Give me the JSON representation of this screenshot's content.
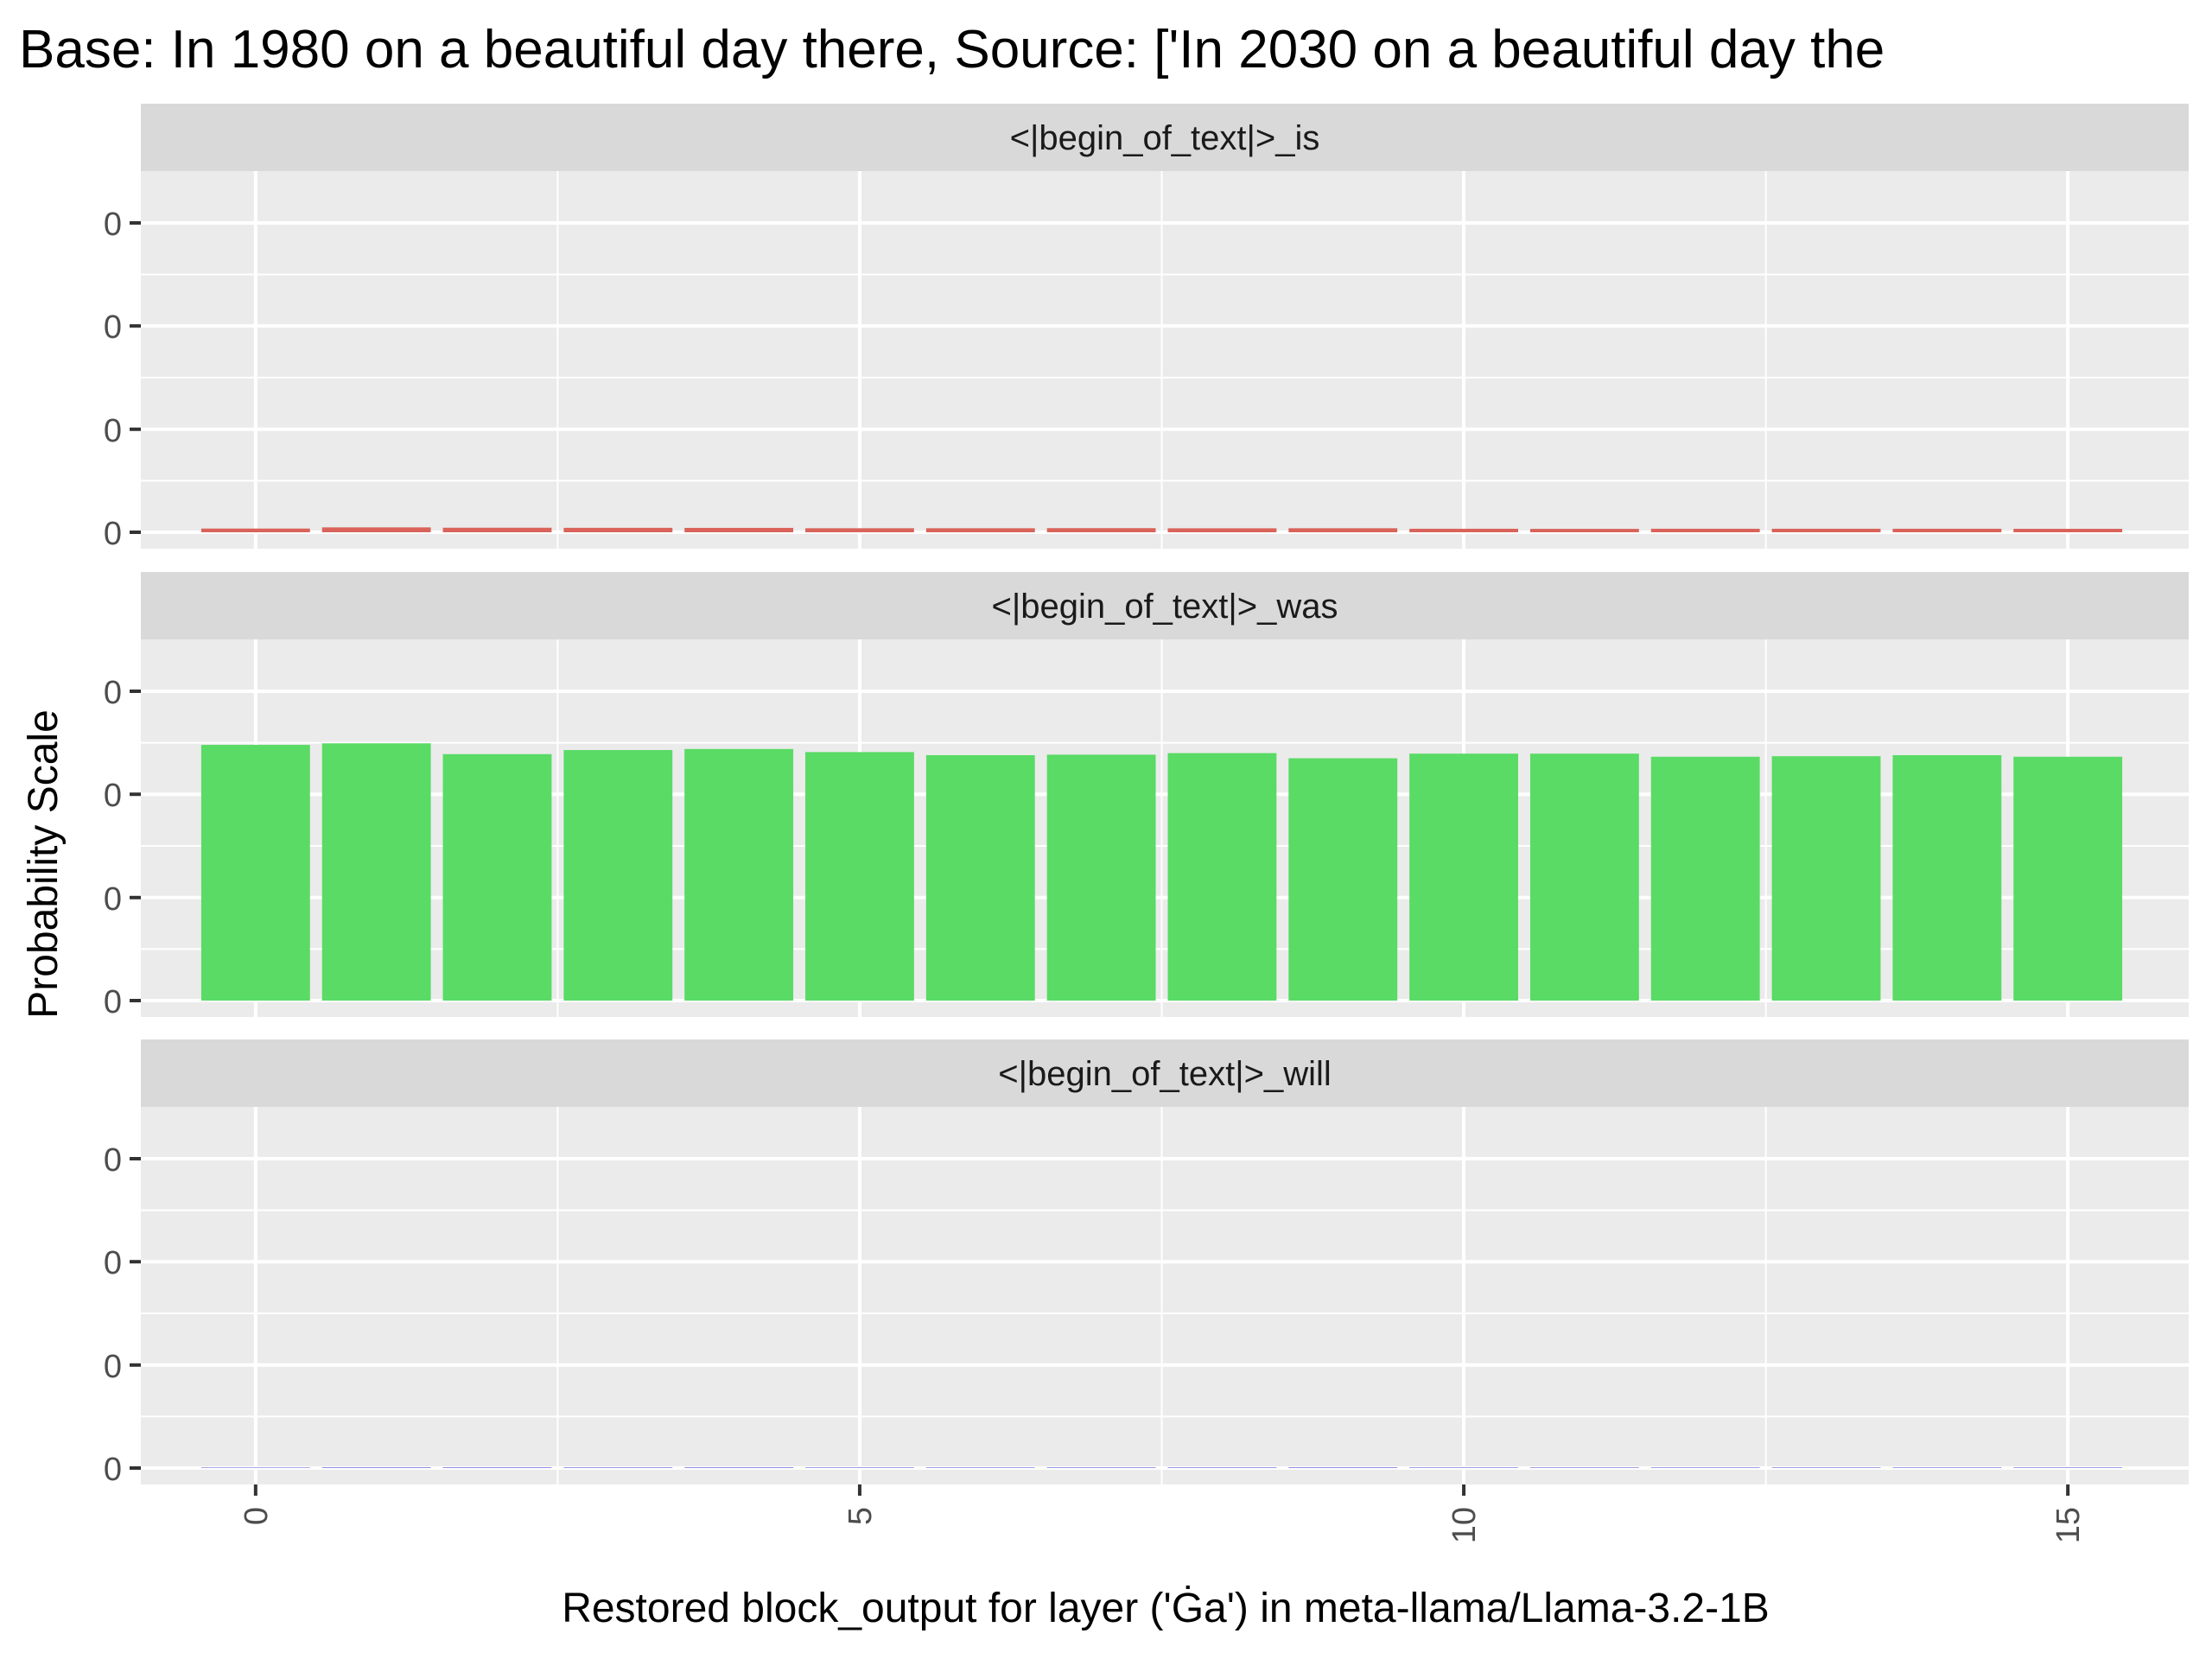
{
  "chart_data": {
    "type": "bar",
    "title": "Base: In 1980 on a beautiful day there, Source: ['In 2030 on a beautiful day the",
    "xlabel": "Restored block_output for layer ('Ġa') in meta-llama/Llama-3.2-1B",
    "ylabel": "Probability Scale",
    "x": [
      0,
      1,
      2,
      3,
      4,
      5,
      6,
      7,
      8,
      9,
      10,
      11,
      12,
      13,
      14,
      15
    ],
    "x_ticks": [
      "0",
      "5",
      "10",
      "15"
    ],
    "y_tick_labels": [
      "0",
      "0",
      "0",
      "0"
    ],
    "ylim": [
      0,
      0.6
    ],
    "grid": true,
    "facets": [
      {
        "strip": "<|begin_of_text|>_is",
        "color": "#D9635A",
        "values": [
          0.0072,
          0.0095,
          0.0088,
          0.0086,
          0.0085,
          0.0078,
          0.0078,
          0.008,
          0.0077,
          0.0078,
          0.0068,
          0.0066,
          0.0068,
          0.0068,
          0.0068,
          0.0067
        ]
      },
      {
        "strip": "<|begin_of_text|>_was",
        "color": "#59DB65",
        "values": [
          0.496,
          0.499,
          0.478,
          0.486,
          0.488,
          0.482,
          0.476,
          0.477,
          0.48,
          0.47,
          0.479,
          0.479,
          0.473,
          0.474,
          0.476,
          0.473
        ]
      },
      {
        "strip": "<|begin_of_text|>_will",
        "color": "#6C6FE0",
        "values": [
          0.001,
          0.0013,
          0.0013,
          0.0012,
          0.0013,
          0.0011,
          0.0011,
          0.0012,
          0.0012,
          0.0013,
          0.0011,
          0.0011,
          0.0011,
          0.0011,
          0.0011,
          0.0011
        ]
      }
    ]
  }
}
